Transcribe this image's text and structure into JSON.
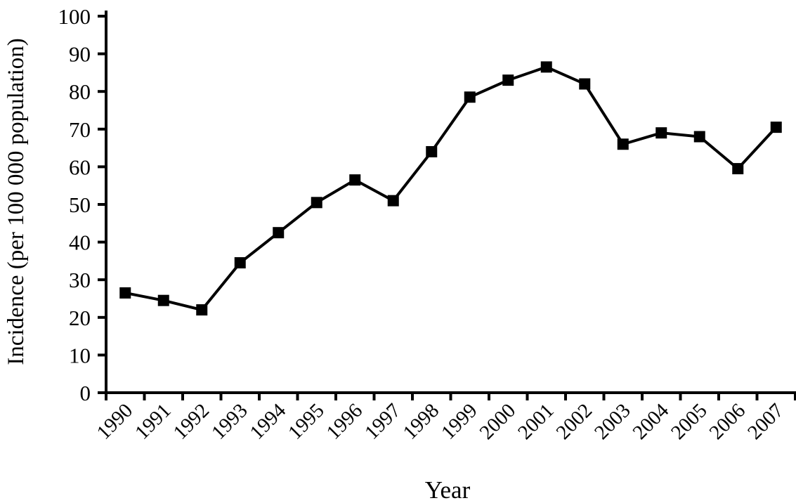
{
  "figure": {
    "background": "#ffffff",
    "ink_color": "#000000"
  },
  "chart_data": {
    "type": "line",
    "title": "",
    "xlabel": "Year",
    "ylabel": "Incidence (per 100 000 population)",
    "x": [
      "1990",
      "1991",
      "1992",
      "1993",
      "1994",
      "1995",
      "1996",
      "1997",
      "1998",
      "1999",
      "2000",
      "2001",
      "2002",
      "2003",
      "2004",
      "2005",
      "2006",
      "2007"
    ],
    "series": [
      {
        "name": "Incidence per 100 000 population",
        "values": [
          26.5,
          24.5,
          22,
          34.5,
          42.5,
          50.5,
          56.5,
          51,
          64,
          78.5,
          83,
          86.5,
          82,
          66,
          69,
          68,
          59.5,
          70.5
        ]
      }
    ],
    "ylim": [
      0,
      100
    ],
    "yticks": [
      0,
      10,
      20,
      30,
      40,
      50,
      60,
      70,
      80,
      90,
      100
    ],
    "marker": "filled-square",
    "marker_size": 16,
    "line_width": 4,
    "line_color": "#000000",
    "grid": false,
    "legend": "none"
  }
}
